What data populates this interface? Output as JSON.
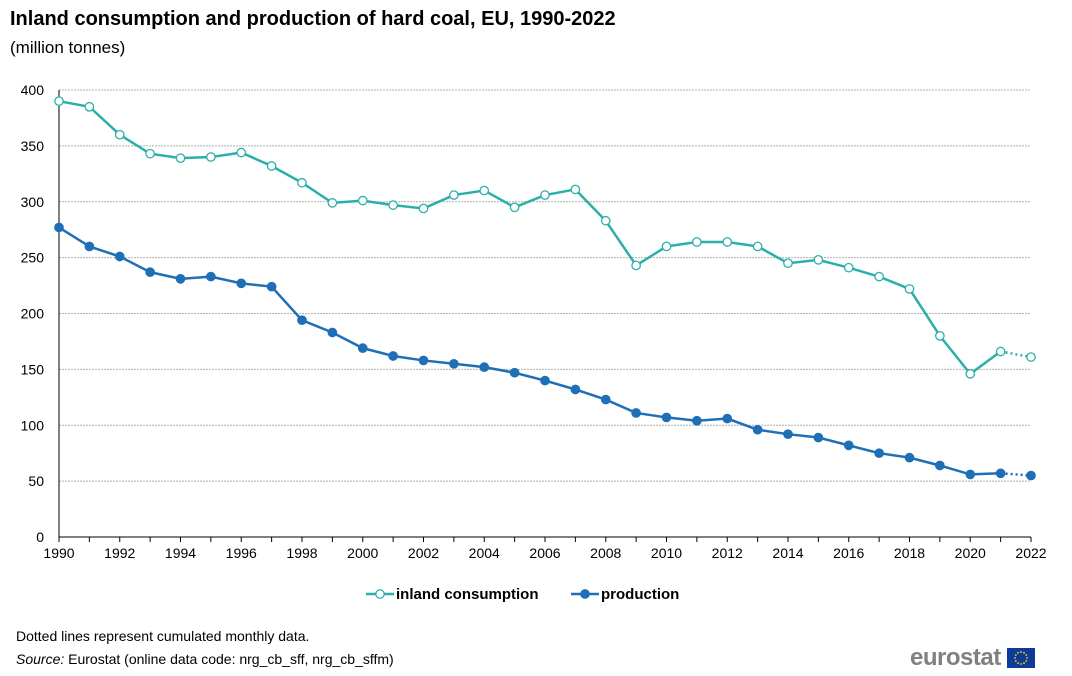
{
  "chart_data": {
    "type": "line",
    "title": "Inland consumption and production of hard coal, EU, 1990-2022",
    "subtitle": "(million  tonnes)",
    "xlabel": "",
    "ylabel": "",
    "ylim": [
      0,
      400
    ],
    "yticks": [
      0,
      50,
      100,
      150,
      200,
      250,
      300,
      350,
      400
    ],
    "xticks": [
      1990,
      1992,
      1994,
      1996,
      1998,
      2000,
      2002,
      2004,
      2006,
      2008,
      2010,
      2012,
      2014,
      2016,
      2018,
      2020,
      2022
    ],
    "x": [
      1990,
      1991,
      1992,
      1993,
      1994,
      1995,
      1996,
      1997,
      1998,
      1999,
      2000,
      2001,
      2002,
      2003,
      2004,
      2005,
      2006,
      2007,
      2008,
      2009,
      2010,
      2011,
      2012,
      2013,
      2014,
      2015,
      2016,
      2017,
      2018,
      2019,
      2020,
      2021,
      2022
    ],
    "dotted_from": 2021,
    "grid": true,
    "legend_position": "bottom",
    "series": [
      {
        "name": "inland consumption",
        "color": "#2ab0a9",
        "marker": "open",
        "values": [
          390,
          385,
          360,
          343,
          339,
          340,
          344,
          332,
          317,
          299,
          301,
          297,
          294,
          306,
          310,
          295,
          306,
          311,
          283,
          243,
          260,
          264,
          264,
          260,
          245,
          248,
          241,
          233,
          222,
          180,
          146,
          166,
          161
        ]
      },
      {
        "name": "production",
        "color": "#1f6fb7",
        "marker": "filled",
        "values": [
          277,
          260,
          251,
          237,
          231,
          233,
          227,
          224,
          194,
          183,
          169,
          162,
          158,
          155,
          152,
          147,
          140,
          132,
          123,
          111,
          107,
          104,
          106,
          96,
          92,
          89,
          82,
          75,
          71,
          64,
          56,
          57,
          55
        ]
      }
    ]
  },
  "footer": {
    "note": "Dotted lines represent cumulated monthly  data.",
    "source_label": "Source:",
    "source_text": " Eurostat (online data code: nrg_cb_sff,  nrg_cb_sffm)",
    "logo": "eurostat"
  }
}
